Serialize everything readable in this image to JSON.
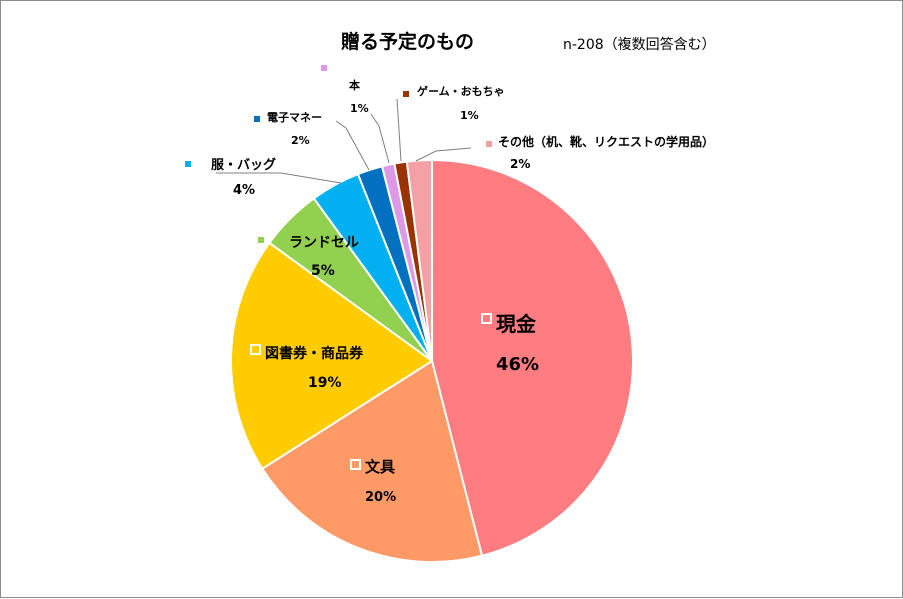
{
  "chart_data": {
    "type": "pie",
    "title": "贈る予定のもの",
    "note": "n-208（複数回答含む）",
    "slices": [
      {
        "name": "現金",
        "value": 46,
        "pct_label": "46%",
        "color": "#ff7c80"
      },
      {
        "name": "文具",
        "value": 20,
        "pct_label": "20%",
        "color": "#ff9966"
      },
      {
        "name": "図書券・商品券",
        "value": 19,
        "pct_label": "19%",
        "color": "#ffcc00"
      },
      {
        "name": "ランドセル",
        "value": 5,
        "pct_label": "5%",
        "color": "#92d050"
      },
      {
        "name": "服・バッグ",
        "value": 4,
        "pct_label": "4%",
        "color": "#00b0f0"
      },
      {
        "name": "電子マネー",
        "value": 2,
        "pct_label": "2%",
        "color": "#0070c0"
      },
      {
        "name": "本",
        "value": 1,
        "pct_label": "1%",
        "color": "#dd99e6"
      },
      {
        "name": "ゲーム・おもちゃ",
        "value": 1,
        "pct_label": "1%",
        "color": "#993300"
      },
      {
        "name": "その他（机、靴、リクエストの学用品）",
        "value": 2,
        "pct_label": "2%",
        "color": "#f4a1a6"
      }
    ]
  }
}
